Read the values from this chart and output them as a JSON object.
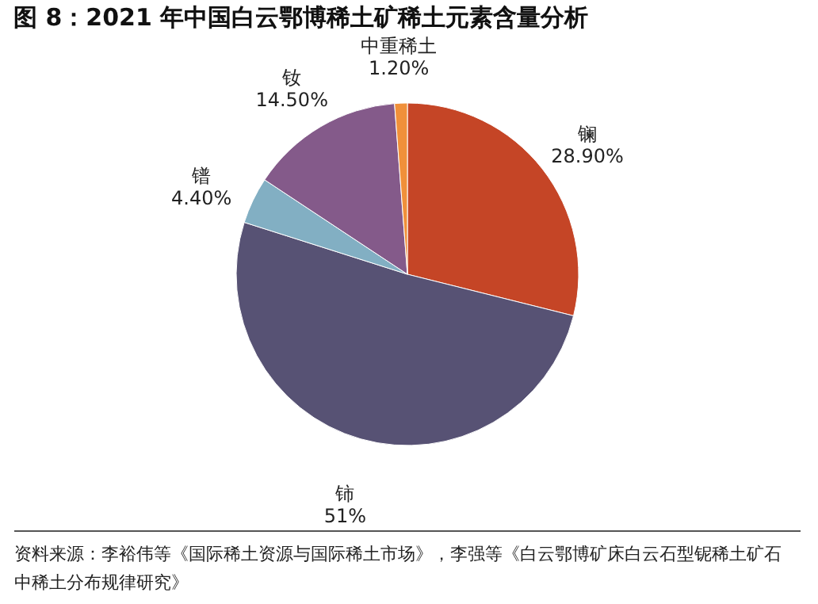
{
  "chart_data": {
    "type": "pie",
    "title": "图 8：2021 年中国白云鄂博稀土矿稀土元素含量分析",
    "categories": [
      "镧",
      "铈",
      "镨",
      "钕",
      "中重稀土"
    ],
    "values": [
      28.9,
      51,
      4.4,
      14.5,
      1.2
    ],
    "value_labels": [
      "28.90%",
      "51%",
      "4.40%",
      "14.50%",
      "1.20%"
    ],
    "colors": [
      "#c54526",
      "#575274",
      "#82afc3",
      "#845a8a",
      "#f0903a"
    ],
    "legend": false,
    "annotations": [
      "资料来源：李裕伟等《国际稀土资源与国际稀土市场》，李强等《白云鄂博矿床白云石型铌稀土矿石中稀土分布规律研究》"
    ]
  }
}
